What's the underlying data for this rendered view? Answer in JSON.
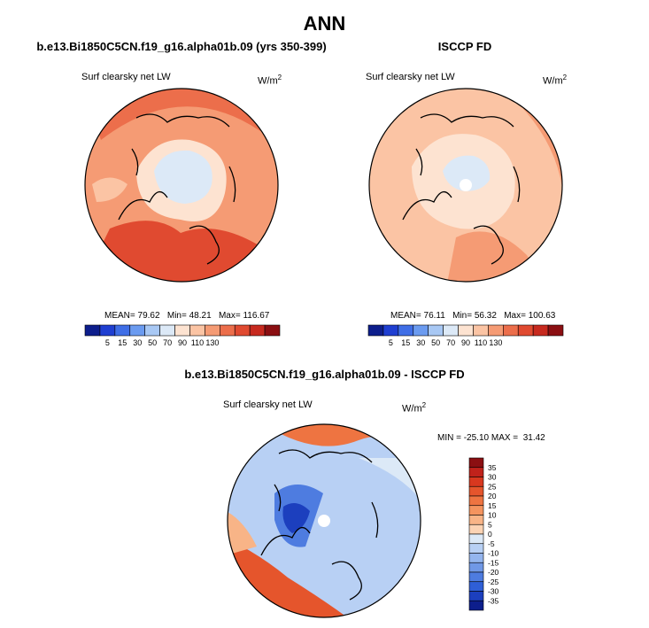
{
  "main_title": "ANN",
  "panels": [
    {
      "heading": "b.e13.Bi1850C5CN.f19_g16.alpha01b.09 (yrs 350-399)",
      "variable": "Surf clearsky net LW",
      "units_base": "W/m",
      "units_exp": "2",
      "stats": "MEAN= 79.62   Min= 48.21   Max= 116.67"
    },
    {
      "heading": "ISCCP FD",
      "variable": "Surf clearsky net LW",
      "units_base": "W/m",
      "units_exp": "2",
      "stats": "MEAN= 76.11   Min= 56.32   Max= 100.63"
    },
    {
      "heading": "b.e13.Bi1850C5CN.f19_g16.alpha01b.09 - ISCCP FD",
      "variable": "Surf clearsky net LW",
      "units_base": "W/m",
      "units_exp": "2",
      "stats": "MIN = -25.10 MAX =  31.42"
    }
  ],
  "chart_data": [
    {
      "type": "heatmap",
      "title": "b.e13.Bi1850C5CN.f19_g16.alpha01b.09 (yrs 350-399)",
      "variable": "Surf clearsky net LW",
      "units": "W/m^2",
      "projection": "polar stereographic (north pole)",
      "mean": 79.62,
      "min": 48.21,
      "max": 116.67,
      "levels": [
        5,
        15,
        30,
        50,
        70,
        90,
        110,
        130
      ],
      "level_labels": [
        "5",
        "15",
        "30",
        "50",
        "70",
        "90",
        "110",
        "130"
      ],
      "colors": [
        "#0d1e8c",
        "#1f3fd1",
        "#3f6ee6",
        "#6b9bf0",
        "#a8c8f4",
        "#dce9f7",
        "#fde3d1",
        "#fbc4a4",
        "#f59b74",
        "#ec6e4b",
        "#e04a30",
        "#c72a1f",
        "#8b0f12"
      ],
      "legend": "bottom"
    },
    {
      "type": "heatmap",
      "title": "ISCCP FD",
      "variable": "Surf clearsky net LW",
      "units": "W/m^2",
      "projection": "polar stereographic (north pole)",
      "mean": 76.11,
      "min": 56.32,
      "max": 100.63,
      "levels": [
        5,
        15,
        30,
        50,
        70,
        90,
        110,
        130
      ],
      "level_labels": [
        "5",
        "15",
        "30",
        "50",
        "70",
        "90",
        "110",
        "130"
      ],
      "colors": [
        "#0d1e8c",
        "#1f3fd1",
        "#3f6ee6",
        "#6b9bf0",
        "#a8c8f4",
        "#dce9f7",
        "#fde3d1",
        "#fbc4a4",
        "#f59b74",
        "#ec6e4b",
        "#e04a30",
        "#c72a1f",
        "#8b0f12"
      ],
      "legend": "bottom"
    },
    {
      "type": "heatmap",
      "title": "b.e13.Bi1850C5CN.f19_g16.alpha01b.09 - ISCCP FD",
      "variable": "Surf clearsky net LW",
      "units": "W/m^2",
      "projection": "polar stereographic (north pole)",
      "min": -25.1,
      "max": 31.42,
      "levels": [
        -35,
        -30,
        -25,
        -20,
        -15,
        -10,
        -5,
        0,
        5,
        10,
        15,
        20,
        25,
        30,
        35
      ],
      "level_labels": [
        "35",
        "30",
        "25",
        "20",
        "15",
        "10",
        "5",
        "0",
        "-5",
        "-10",
        "-15",
        "-20",
        "-25",
        "-30",
        "-35"
      ],
      "colors": [
        "#8b0f12",
        "#c0221b",
        "#d8381f",
        "#e5552c",
        "#ee7441",
        "#f4945f",
        "#f8b487",
        "#fbd3b4",
        "#dce9f7",
        "#b8d0f4",
        "#94b5ee",
        "#7098e6",
        "#4e7ce0",
        "#2f5fd6",
        "#1c3fbe",
        "#0d1e8c"
      ],
      "legend": "right"
    }
  ]
}
